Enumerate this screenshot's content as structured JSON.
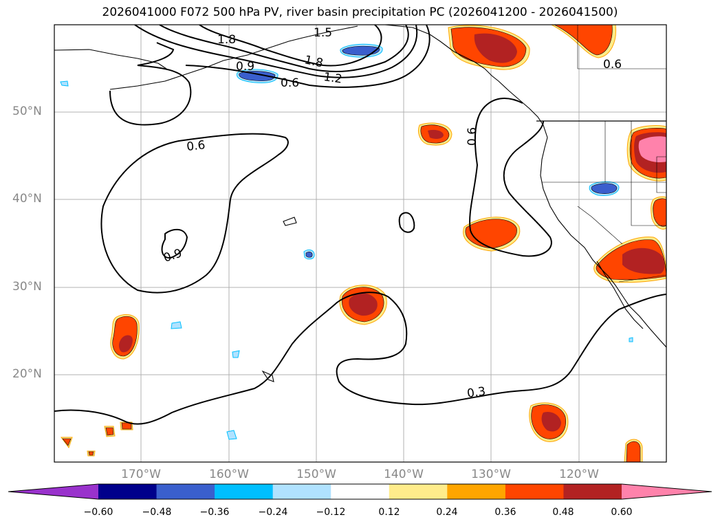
{
  "title": "2026041000 F072 500 hPa PV, river basin precipitation PC (2026041200 - 2026041500)",
  "lat_labels": [
    "50°N",
    "40°N",
    "30°N",
    "20°N"
  ],
  "lon_labels": [
    "170°W",
    "160°W",
    "150°W",
    "140°W",
    "130°W",
    "120°W"
  ],
  "contour_labels": [
    "1.8",
    "1.5",
    "1.8",
    "1.2",
    "0.9",
    "0.6",
    "0.6",
    "0.6",
    "0.6",
    "0.9",
    "0.3"
  ],
  "colorbar": {
    "colors": [
      "#9932cc",
      "#00008b",
      "#3a5fcd",
      "#00bfff",
      "#b0e2ff",
      "#ffffff",
      "#ffec8b",
      "#ffa500",
      "#ff4500",
      "#b22222",
      "#ff82ab"
    ],
    "labels": [
      "−0.60",
      "−0.48",
      "−0.36",
      "−0.24",
      "−0.12",
      "0.12",
      "0.24",
      "0.36",
      "0.48",
      "0.60"
    ]
  },
  "palette": {
    "pos_outer": "#ffec8b",
    "pos_mid": "#ffa500",
    "pos_main": "#ff4500",
    "pos_high": "#b22222",
    "pos_peak": "#ff82ab",
    "neg_outer": "#b0e2ff",
    "neg_mid": "#00bfff",
    "neg_main": "#3a5fcd"
  }
}
